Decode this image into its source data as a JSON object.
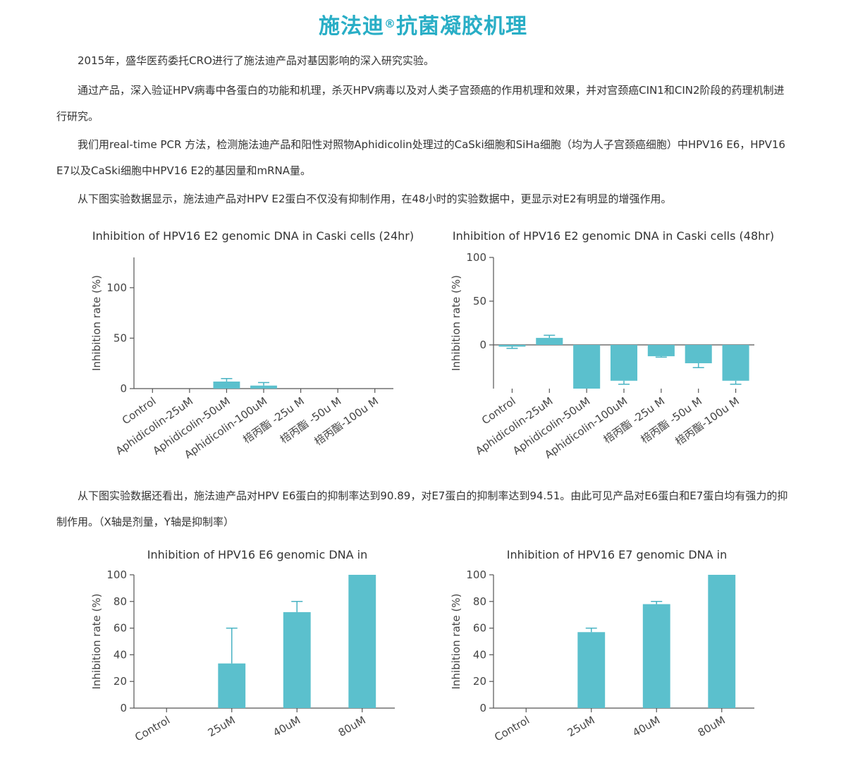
{
  "page": {
    "title_main": "施法迪",
    "title_reg": "®",
    "title_rest": "抗菌凝胶机理",
    "paragraphs": [
      "2015年，盛华医药委托CRO进行了施法迪产品对基因影响的深入研究实验。",
      "通过产品，深入验证HPV病毒中各蛋白的功能和机理，杀灭HPV病毒以及对人类子宫颈癌的作用机理和效果，并对宫颈癌CIN1和CIN2阶段的药理机制进行研究。",
      "我们用real-time PCR 方法，检测施法迪产品和阳性对照物Aphidicolin处理过的CaSki细胞和SiHa细胞（均为人子宫颈癌细胞）中HPV16 E6，HPV16 E7以及CaSki细胞中HPV16 E2的基因量和mRNA量。",
      "从下图实验数据显示，施法迪产品对HPV E2蛋白不仅没有抑制作用，在48小时的实验数据中，更显示对E2有明显的增强作用。",
      "从下图实验数据还看出，施法迪产品对HPV E6蛋白的抑制率达到90.89，对E7蛋白的抑制率达到94.51。由此可见产品对E6蛋白和E7蛋白均有强力的抑制作用。（X轴是剂量，Y轴是抑制率）"
    ]
  },
  "colors": {
    "accent": "#29aec6",
    "bar": "#5bc0cd",
    "axis": "#555555"
  },
  "chart_data": [
    {
      "type": "bar",
      "title": "Inhibition of HPV16 E2 genomic DNA in Caski cells (24hr)",
      "ylabel": "Inhibition rate (%)",
      "xlabel": "",
      "categories": [
        "Control",
        "Aphidicolin-25uM",
        "Aphidicolin-50uM",
        "Aphidicolin-100uM",
        "棓丙酯 -25u M",
        "棓丙酯 -50u M",
        "棓丙酯-100u M"
      ],
      "values": [
        0,
        0,
        7,
        3,
        0,
        0,
        0
      ],
      "errors": [
        0,
        0,
        3,
        3,
        0,
        0,
        0
      ],
      "ylim": [
        0,
        130
      ],
      "yticks": [
        0,
        50,
        100
      ]
    },
    {
      "type": "bar",
      "title": "Inhibition of HPV16 E2 genomic DNA in Caski cells (48hr)",
      "ylabel": "Inhibition rate (%)",
      "xlabel": "",
      "categories": [
        "Control",
        "Aphidicolin-25uM",
        "Aphidicolin-50uM",
        "Aphidicolin-100uM",
        "棓丙酯 -25u M",
        "棓丙酯 -50u M",
        "棓丙酯-100u M"
      ],
      "values": [
        -2,
        8,
        -50,
        -41,
        -13,
        -21,
        -41
      ],
      "errors": [
        2,
        3,
        0,
        4,
        1,
        5,
        4
      ],
      "ylim": [
        -50,
        100
      ],
      "yticks": [
        0,
        50,
        100
      ]
    },
    {
      "type": "bar",
      "title": "Inhibition of HPV16 E6 genomic DNA in",
      "ylabel": "Inhibition rate (%)",
      "xlabel": "",
      "categories": [
        "Control",
        "25uM",
        "40uM",
        "80uM"
      ],
      "values": [
        0,
        33.5,
        72,
        100
      ],
      "errors": [
        0,
        26.5,
        8,
        0
      ],
      "ylim": [
        0,
        100
      ],
      "yticks": [
        0,
        20,
        40,
        60,
        80,
        100
      ]
    },
    {
      "type": "bar",
      "title": "Inhibition of HPV16 E7 genomic DNA in",
      "ylabel": "Inhibition rate (%)",
      "xlabel": "",
      "categories": [
        "Control",
        "25uM",
        "40uM",
        "80uM"
      ],
      "values": [
        0,
        57,
        78,
        100
      ],
      "errors": [
        0,
        3,
        2,
        0
      ],
      "ylim": [
        0,
        100
      ],
      "yticks": [
        0,
        20,
        40,
        60,
        80,
        100
      ]
    }
  ]
}
